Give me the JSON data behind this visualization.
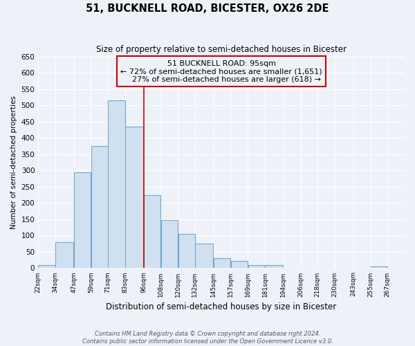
{
  "title": "51, BUCKNELL ROAD, BICESTER, OX26 2DE",
  "subtitle": "Size of property relative to semi-detached houses in Bicester",
  "xlabel": "Distribution of semi-detached houses by size in Bicester",
  "ylabel": "Number of semi-detached properties",
  "bar_left_edges": [
    22,
    34,
    47,
    59,
    71,
    83,
    96,
    108,
    120,
    132,
    145,
    157,
    169,
    181,
    194,
    206,
    218,
    230,
    243,
    255
  ],
  "bar_widths": [
    12,
    13,
    12,
    12,
    12,
    13,
    12,
    12,
    12,
    13,
    12,
    12,
    12,
    13,
    12,
    12,
    12,
    13,
    12,
    12
  ],
  "bar_heights": [
    10,
    80,
    295,
    375,
    515,
    435,
    225,
    148,
    105,
    75,
    30,
    22,
    10,
    10,
    0,
    0,
    0,
    0,
    0,
    5
  ],
  "tick_labels": [
    "22sqm",
    "34sqm",
    "47sqm",
    "59sqm",
    "71sqm",
    "83sqm",
    "96sqm",
    "108sqm",
    "120sqm",
    "132sqm",
    "145sqm",
    "157sqm",
    "169sqm",
    "181sqm",
    "194sqm",
    "206sqm",
    "218sqm",
    "230sqm",
    "243sqm",
    "255sqm",
    "267sqm"
  ],
  "bar_color": "#cfe0f0",
  "bar_edge_color": "#6b9ec8",
  "property_line_x": 96,
  "annotation_line1": "51 BUCKNELL ROAD: 95sqm",
  "annotation_line2": "← 72% of semi-detached houses are smaller (1,651)",
  "annotation_line3": "    27% of semi-detached houses are larger (618) →",
  "annotation_box_color": "#cc0000",
  "ylim": [
    0,
    650
  ],
  "yticks": [
    0,
    50,
    100,
    150,
    200,
    250,
    300,
    350,
    400,
    450,
    500,
    550,
    600,
    650
  ],
  "footer_line1": "Contains HM Land Registry data © Crown copyright and database right 2024.",
  "footer_line2": "Contains public sector information licensed under the Open Government Licence v3.0.",
  "bg_color": "#eef2f8",
  "grid_color": "#ffffff",
  "xlim_left": 22,
  "xlim_right": 279
}
